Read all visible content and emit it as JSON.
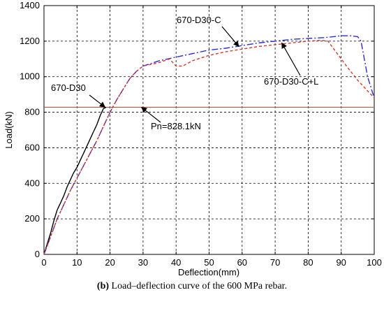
{
  "chart_data": {
    "type": "line",
    "xlabel": "Deflection(mm)",
    "ylabel": "Load(kN)",
    "xlim": [
      0,
      100
    ],
    "ylim": [
      0,
      1400
    ],
    "xticks": [
      0,
      10,
      20,
      30,
      40,
      50,
      60,
      70,
      80,
      90,
      100
    ],
    "yticks": [
      0,
      200,
      400,
      600,
      800,
      1000,
      1200,
      1400
    ],
    "grid": true,
    "reference_line": {
      "y": 828.1,
      "color": "#b05a3c"
    },
    "series": [
      {
        "name": "670-D30",
        "color": "#000000",
        "style": "solid",
        "points": [
          [
            0,
            0
          ],
          [
            1,
            60
          ],
          [
            2,
            120
          ],
          [
            3,
            190
          ],
          [
            4,
            250
          ],
          [
            5,
            290
          ],
          [
            6,
            330
          ],
          [
            7,
            380
          ],
          [
            8,
            420
          ],
          [
            9,
            460
          ],
          [
            10,
            490
          ],
          [
            11,
            530
          ],
          [
            12,
            570
          ],
          [
            13,
            610
          ],
          [
            14,
            650
          ],
          [
            15,
            690
          ],
          [
            16,
            730
          ],
          [
            17,
            780
          ],
          [
            18,
            820
          ],
          [
            18.8,
            828
          ]
        ]
      },
      {
        "name": "670-D30-C",
        "color": "#2b2bd6",
        "style": "dashdot",
        "points": [
          [
            0,
            0
          ],
          [
            2,
            100
          ],
          [
            4,
            200
          ],
          [
            6,
            280
          ],
          [
            8,
            360
          ],
          [
            10,
            430
          ],
          [
            12,
            500
          ],
          [
            14,
            570
          ],
          [
            16,
            640
          ],
          [
            18,
            720
          ],
          [
            20,
            800
          ],
          [
            22,
            870
          ],
          [
            24,
            930
          ],
          [
            26,
            990
          ],
          [
            28,
            1030
          ],
          [
            30,
            1060
          ],
          [
            35,
            1090
          ],
          [
            40,
            1110
          ],
          [
            45,
            1130
          ],
          [
            50,
            1150
          ],
          [
            55,
            1160
          ],
          [
            60,
            1175
          ],
          [
            65,
            1190
          ],
          [
            70,
            1200
          ],
          [
            75,
            1210
          ],
          [
            80,
            1215
          ],
          [
            85,
            1220
          ],
          [
            90,
            1230
          ],
          [
            93,
            1230
          ],
          [
            95,
            1225
          ],
          [
            96,
            1200
          ],
          [
            98,
            1000
          ],
          [
            100,
            880
          ]
        ]
      },
      {
        "name": "670-D30-C+L",
        "color": "#d43a2a",
        "style": "dashed",
        "points": [
          [
            0,
            0
          ],
          [
            2,
            100
          ],
          [
            4,
            200
          ],
          [
            6,
            280
          ],
          [
            8,
            360
          ],
          [
            10,
            430
          ],
          [
            12,
            500
          ],
          [
            14,
            570
          ],
          [
            16,
            640
          ],
          [
            18,
            720
          ],
          [
            20,
            800
          ],
          [
            22,
            870
          ],
          [
            24,
            930
          ],
          [
            26,
            990
          ],
          [
            28,
            1030
          ],
          [
            30,
            1060
          ],
          [
            35,
            1080
          ],
          [
            38,
            1100
          ],
          [
            40,
            1060
          ],
          [
            42,
            1060
          ],
          [
            45,
            1090
          ],
          [
            50,
            1120
          ],
          [
            55,
            1140
          ],
          [
            60,
            1155
          ],
          [
            65,
            1170
          ],
          [
            70,
            1180
          ],
          [
            75,
            1190
          ],
          [
            80,
            1200
          ],
          [
            84,
            1205
          ],
          [
            86,
            1200
          ],
          [
            88,
            1150
          ],
          [
            90,
            1100
          ],
          [
            92,
            1050
          ],
          [
            95,
            980
          ],
          [
            98,
            920
          ],
          [
            100,
            880
          ]
        ]
      }
    ],
    "annotations": [
      {
        "text": "670-D30",
        "at": [
          18.5,
          828
        ]
      },
      {
        "text": "670-D30-C",
        "at": [
          59,
          1170
        ]
      },
      {
        "text": "670-D30-C+L",
        "at": [
          72,
          1190
        ]
      },
      {
        "text": "Pn=828.1kN",
        "at": [
          29.5,
          828
        ]
      }
    ]
  },
  "caption": {
    "label": "(b)",
    "text": "Load–deflection curve of the 600 MPa rebar."
  }
}
